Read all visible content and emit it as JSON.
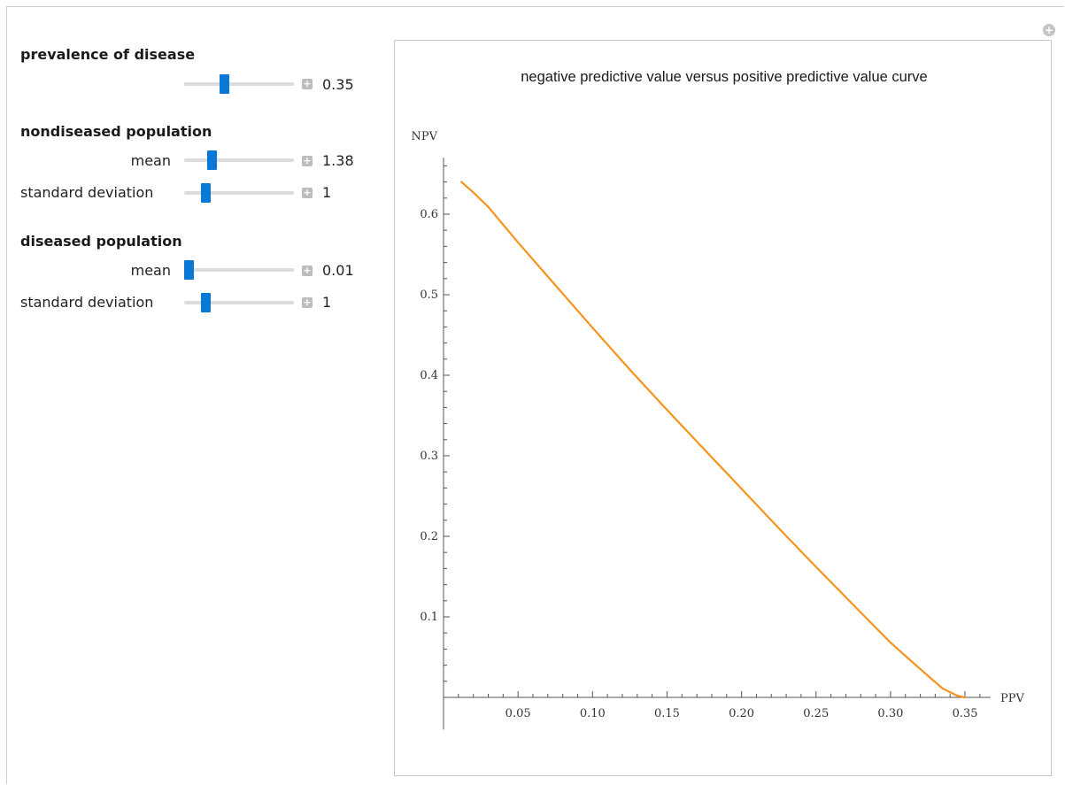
{
  "controls": {
    "prevalence": {
      "title": "prevalence of disease",
      "value": "0.35",
      "slider_fraction": 0.36
    },
    "nondiseased": {
      "title": "nondiseased population",
      "mean_label": "mean",
      "mean_value": "1.38",
      "mean_fraction": 0.25,
      "sd_label": "standard deviation",
      "sd_value": "1",
      "sd_fraction": 0.19
    },
    "diseased": {
      "title": "diseased population",
      "mean_label": "mean",
      "mean_value": "0.01",
      "mean_fraction": 0.04,
      "sd_label": "standard deviation",
      "sd_value": "1",
      "sd_fraction": 0.19
    }
  },
  "colors": {
    "curve": "#f7931e",
    "slider_thumb": "#0a78d7"
  },
  "icons": {
    "corner": "plus-circle-icon",
    "slider_button": "plus-square-icon"
  },
  "chart_data": {
    "type": "line",
    "title": "negative predictive value versus positive predictive value curve",
    "xlabel": "PPV",
    "ylabel": "NPV",
    "xlim": [
      0,
      0.36
    ],
    "ylim": [
      -0.04,
      0.67
    ],
    "x_ticks": [
      "0.05",
      "0.10",
      "0.15",
      "0.20",
      "0.25",
      "0.30",
      "0.35"
    ],
    "y_ticks": [
      "0.1",
      "0.2",
      "0.3",
      "0.4",
      "0.5",
      "0.6"
    ],
    "series": [
      {
        "x": [
          0.012,
          0.02,
          0.03,
          0.05,
          0.075,
          0.1,
          0.125,
          0.15,
          0.175,
          0.2,
          0.225,
          0.25,
          0.275,
          0.3,
          0.32,
          0.335,
          0.345,
          0.35
        ],
        "y": [
          0.64,
          0.627,
          0.609,
          0.565,
          0.512,
          0.459,
          0.407,
          0.357,
          0.308,
          0.259,
          0.21,
          0.162,
          0.115,
          0.068,
          0.035,
          0.011,
          0.002,
          0.0
        ]
      }
    ]
  }
}
